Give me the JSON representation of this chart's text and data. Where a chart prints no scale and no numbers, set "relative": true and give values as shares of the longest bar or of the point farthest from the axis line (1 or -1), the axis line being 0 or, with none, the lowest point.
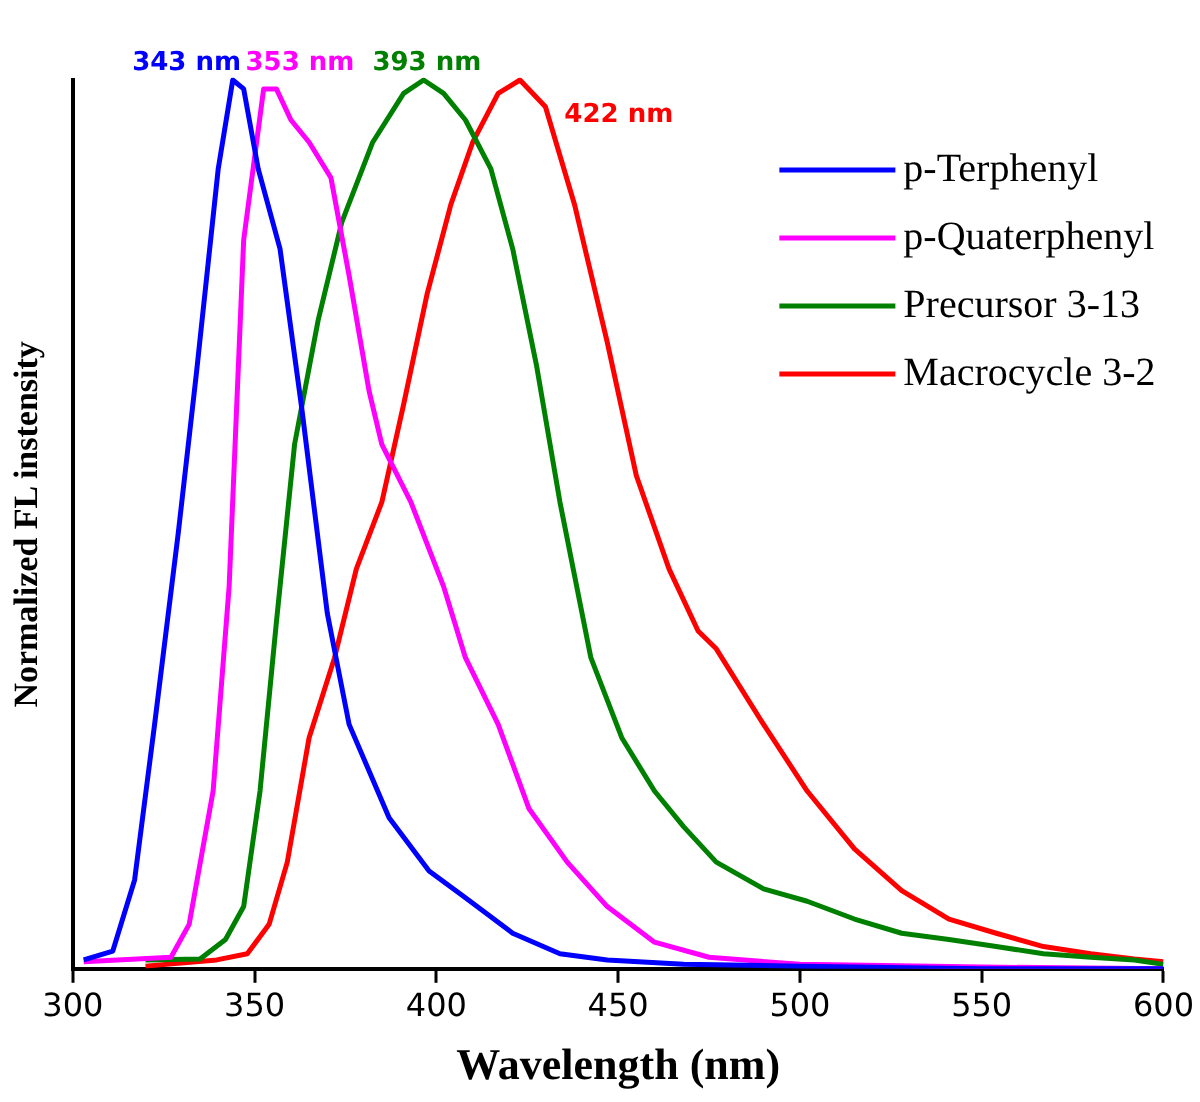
{
  "chart_data": {
    "type": "line",
    "xlabel": "Wavelength (nm)",
    "ylabel": "Normalized FL instensity",
    "relative": true,
    "xlim": [
      300,
      600
    ],
    "xticks": [
      300,
      350,
      400,
      450,
      500,
      550,
      600
    ],
    "grid": false,
    "legend": "top right",
    "marker": "none",
    "line_style": "solid",
    "annotations": [
      {
        "text": "343 nm",
        "x": 343,
        "y": 1
      },
      {
        "text": "353 nm",
        "x": 353,
        "y": 1
      },
      {
        "text": "393 nm",
        "x": 393,
        "y": 1
      },
      {
        "text": "422 nm",
        "x": 422,
        "y": 1
      }
    ],
    "series": [
      {
        "name": "p-Terphenyl",
        "color": "#0000ff",
        "x": [
          303,
          311,
          317,
          322.5,
          329,
          334,
          340,
          344,
          347,
          351,
          357,
          363,
          370,
          376,
          387,
          398,
          408,
          421,
          434,
          447,
          468,
          500,
          550,
          600
        ],
        "values": [
          0.01,
          0.02,
          0.1,
          0.275,
          0.49,
          0.67,
          0.9,
          1,
          0.99,
          0.9,
          0.81,
          0.63,
          0.4,
          0.275,
          0.17,
          0.11,
          0.08,
          0.04,
          0.017,
          0.01,
          0.005,
          0.003,
          0,
          0
        ]
      },
      {
        "name": "p-Quaterphenyl",
        "color": "#ff00ff",
        "x": [
          303,
          327,
          332,
          338.6,
          343,
          347,
          352.5,
          356,
          360,
          365,
          371,
          376,
          381.5,
          385,
          393,
          402,
          408,
          417,
          425.5,
          436,
          447,
          460,
          475,
          500,
          550,
          600
        ],
        "values": [
          0.008,
          0.013,
          0.05,
          0.2,
          0.43,
          0.82,
          0.99,
          0.99,
          0.955,
          0.93,
          0.89,
          0.78,
          0.65,
          0.59,
          0.525,
          0.43,
          0.35,
          0.275,
          0.18,
          0.12,
          0.07,
          0.03,
          0.013,
          0.005,
          0.002,
          0
        ]
      },
      {
        "name": "Precursor 3-13",
        "color": "#008000",
        "x": [
          320,
          335,
          342,
          347,
          351.5,
          356,
          361,
          367.5,
          374,
          382.5,
          391,
          396.5,
          402,
          408,
          415,
          421,
          427.5,
          434,
          442.5,
          451,
          460,
          468,
          477,
          490,
          502,
          515,
          528,
          541,
          554,
          567,
          580,
          592,
          600
        ],
        "values": [
          0.01,
          0.011,
          0.033,
          0.07,
          0.2,
          0.39,
          0.59,
          0.73,
          0.84,
          0.93,
          0.985,
          1,
          0.985,
          0.955,
          0.9,
          0.81,
          0.68,
          0.525,
          0.35,
          0.26,
          0.2,
          0.16,
          0.12,
          0.09,
          0.076,
          0.056,
          0.04,
          0.033,
          0.025,
          0.017,
          0.013,
          0.01,
          0.005
        ]
      },
      {
        "name": "Macrocycle 3-2",
        "color": "#ff0000",
        "x": [
          320,
          339.6,
          348,
          354,
          359,
          365,
          372,
          378,
          385,
          391,
          397.5,
          404,
          410,
          417,
          423,
          430,
          438,
          447,
          455,
          464,
          472,
          477,
          490,
          502,
          515,
          528,
          541,
          554,
          567,
          580,
          592,
          600
        ],
        "values": [
          0.003,
          0.01,
          0.017,
          0.05,
          0.12,
          0.26,
          0.35,
          0.45,
          0.525,
          0.635,
          0.76,
          0.86,
          0.93,
          0.985,
          1,
          0.97,
          0.86,
          0.705,
          0.555,
          0.45,
          0.38,
          0.36,
          0.275,
          0.2,
          0.135,
          0.088,
          0.056,
          0.04,
          0.025,
          0.017,
          0.011,
          0.008
        ]
      }
    ]
  }
}
